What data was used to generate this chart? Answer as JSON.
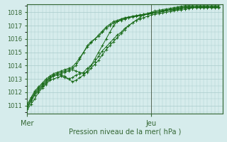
{
  "title": "",
  "xlabel": "Pression niveau de la mer( hPa )",
  "ylabel": "",
  "bg_color": "#d6ecec",
  "grid_color": "#aacccc",
  "line_color": "#1a6b1a",
  "axis_color": "#336633",
  "ylim": [
    1010.4,
    1018.6
  ],
  "yticks": [
    1011,
    1012,
    1013,
    1014,
    1015,
    1016,
    1017,
    1018
  ],
  "xlim": [
    0,
    52
  ],
  "mer_x": 0,
  "jeu_x": 33,
  "series": [
    [
      1010.7,
      1011.1,
      1011.5,
      1012.0,
      1012.3,
      1012.6,
      1012.9,
      1013.0,
      1013.1,
      1013.2,
      1013.1,
      1013.0,
      1013.1,
      1013.3,
      1013.4,
      1013.5,
      1013.8,
      1014.0,
      1014.3,
      1014.7,
      1015.1,
      1015.4,
      1015.7,
      1016.0,
      1016.3,
      1016.5,
      1016.8,
      1017.0,
      1017.2,
      1017.4,
      1017.6,
      1017.8,
      1017.9,
      1018.0,
      1018.1,
      1018.15,
      1018.2,
      1018.25,
      1018.3,
      1018.35,
      1018.4,
      1018.45,
      1018.5,
      1018.5,
      1018.5,
      1018.5,
      1018.5,
      1018.5,
      1018.5,
      1018.5,
      1018.5,
      1018.5
    ],
    [
      1010.8,
      1011.3,
      1011.8,
      1012.1,
      1012.4,
      1012.7,
      1013.0,
      1013.2,
      1013.3,
      1013.4,
      1013.5,
      1013.6,
      1013.7,
      1013.6,
      1013.5,
      1013.4,
      1013.5,
      1013.8,
      1014.1,
      1014.4,
      1014.8,
      1015.2,
      1015.5,
      1015.8,
      1016.1,
      1016.4,
      1016.7,
      1017.0,
      1017.2,
      1017.4,
      1017.5,
      1017.6,
      1017.7,
      1017.8,
      1017.85,
      1017.9,
      1017.95,
      1018.0,
      1018.05,
      1018.1,
      1018.15,
      1018.2,
      1018.25,
      1018.3,
      1018.35,
      1018.4,
      1018.4,
      1018.4,
      1018.4,
      1018.4,
      1018.4,
      1018.4
    ],
    [
      1010.85,
      1011.4,
      1011.9,
      1012.2,
      1012.5,
      1012.8,
      1013.1,
      1013.3,
      1013.4,
      1013.5,
      1013.6,
      1013.7,
      1013.8,
      1014.0,
      1014.5,
      1015.0,
      1015.5,
      1015.8,
      1016.0,
      1016.2,
      1016.5,
      1016.8,
      1017.0,
      1017.2,
      1017.3,
      1017.4,
      1017.5,
      1017.6,
      1017.7,
      1017.75,
      1017.8,
      1017.85,
      1017.9,
      1017.95,
      1018.0,
      1018.05,
      1018.1,
      1018.15,
      1018.2,
      1018.25,
      1018.3,
      1018.35,
      1018.4,
      1018.4,
      1018.4,
      1018.4,
      1018.4,
      1018.4,
      1018.4,
      1018.4,
      1018.4,
      1018.4
    ],
    [
      1011.0,
      1011.5,
      1012.0,
      1012.3,
      1012.6,
      1012.9,
      1013.1,
      1013.3,
      1013.4,
      1013.3,
      1013.2,
      1013.0,
      1012.8,
      1012.9,
      1013.1,
      1013.3,
      1013.6,
      1014.0,
      1014.5,
      1015.0,
      1015.5,
      1016.0,
      1016.5,
      1017.0,
      1017.3,
      1017.5,
      1017.6,
      1017.65,
      1017.7,
      1017.75,
      1017.8,
      1017.85,
      1017.9,
      1017.95,
      1018.0,
      1018.05,
      1018.1,
      1018.15,
      1018.2,
      1018.25,
      1018.3,
      1018.35,
      1018.4,
      1018.4,
      1018.4,
      1018.4,
      1018.4,
      1018.4,
      1018.4,
      1018.4,
      1018.4,
      1018.4
    ],
    [
      1011.1,
      1011.6,
      1012.1,
      1012.4,
      1012.7,
      1013.0,
      1013.2,
      1013.4,
      1013.5,
      1013.6,
      1013.7,
      1013.8,
      1013.9,
      1014.2,
      1014.6,
      1015.0,
      1015.4,
      1015.7,
      1016.0,
      1016.3,
      1016.6,
      1016.9,
      1017.1,
      1017.3,
      1017.4,
      1017.5,
      1017.55,
      1017.6,
      1017.65,
      1017.7,
      1017.75,
      1017.8,
      1017.85,
      1017.9,
      1017.95,
      1018.0,
      1018.05,
      1018.1,
      1018.15,
      1018.2,
      1018.25,
      1018.3,
      1018.35,
      1018.35,
      1018.35,
      1018.35,
      1018.35,
      1018.35,
      1018.35,
      1018.35,
      1018.35,
      1018.35
    ]
  ]
}
